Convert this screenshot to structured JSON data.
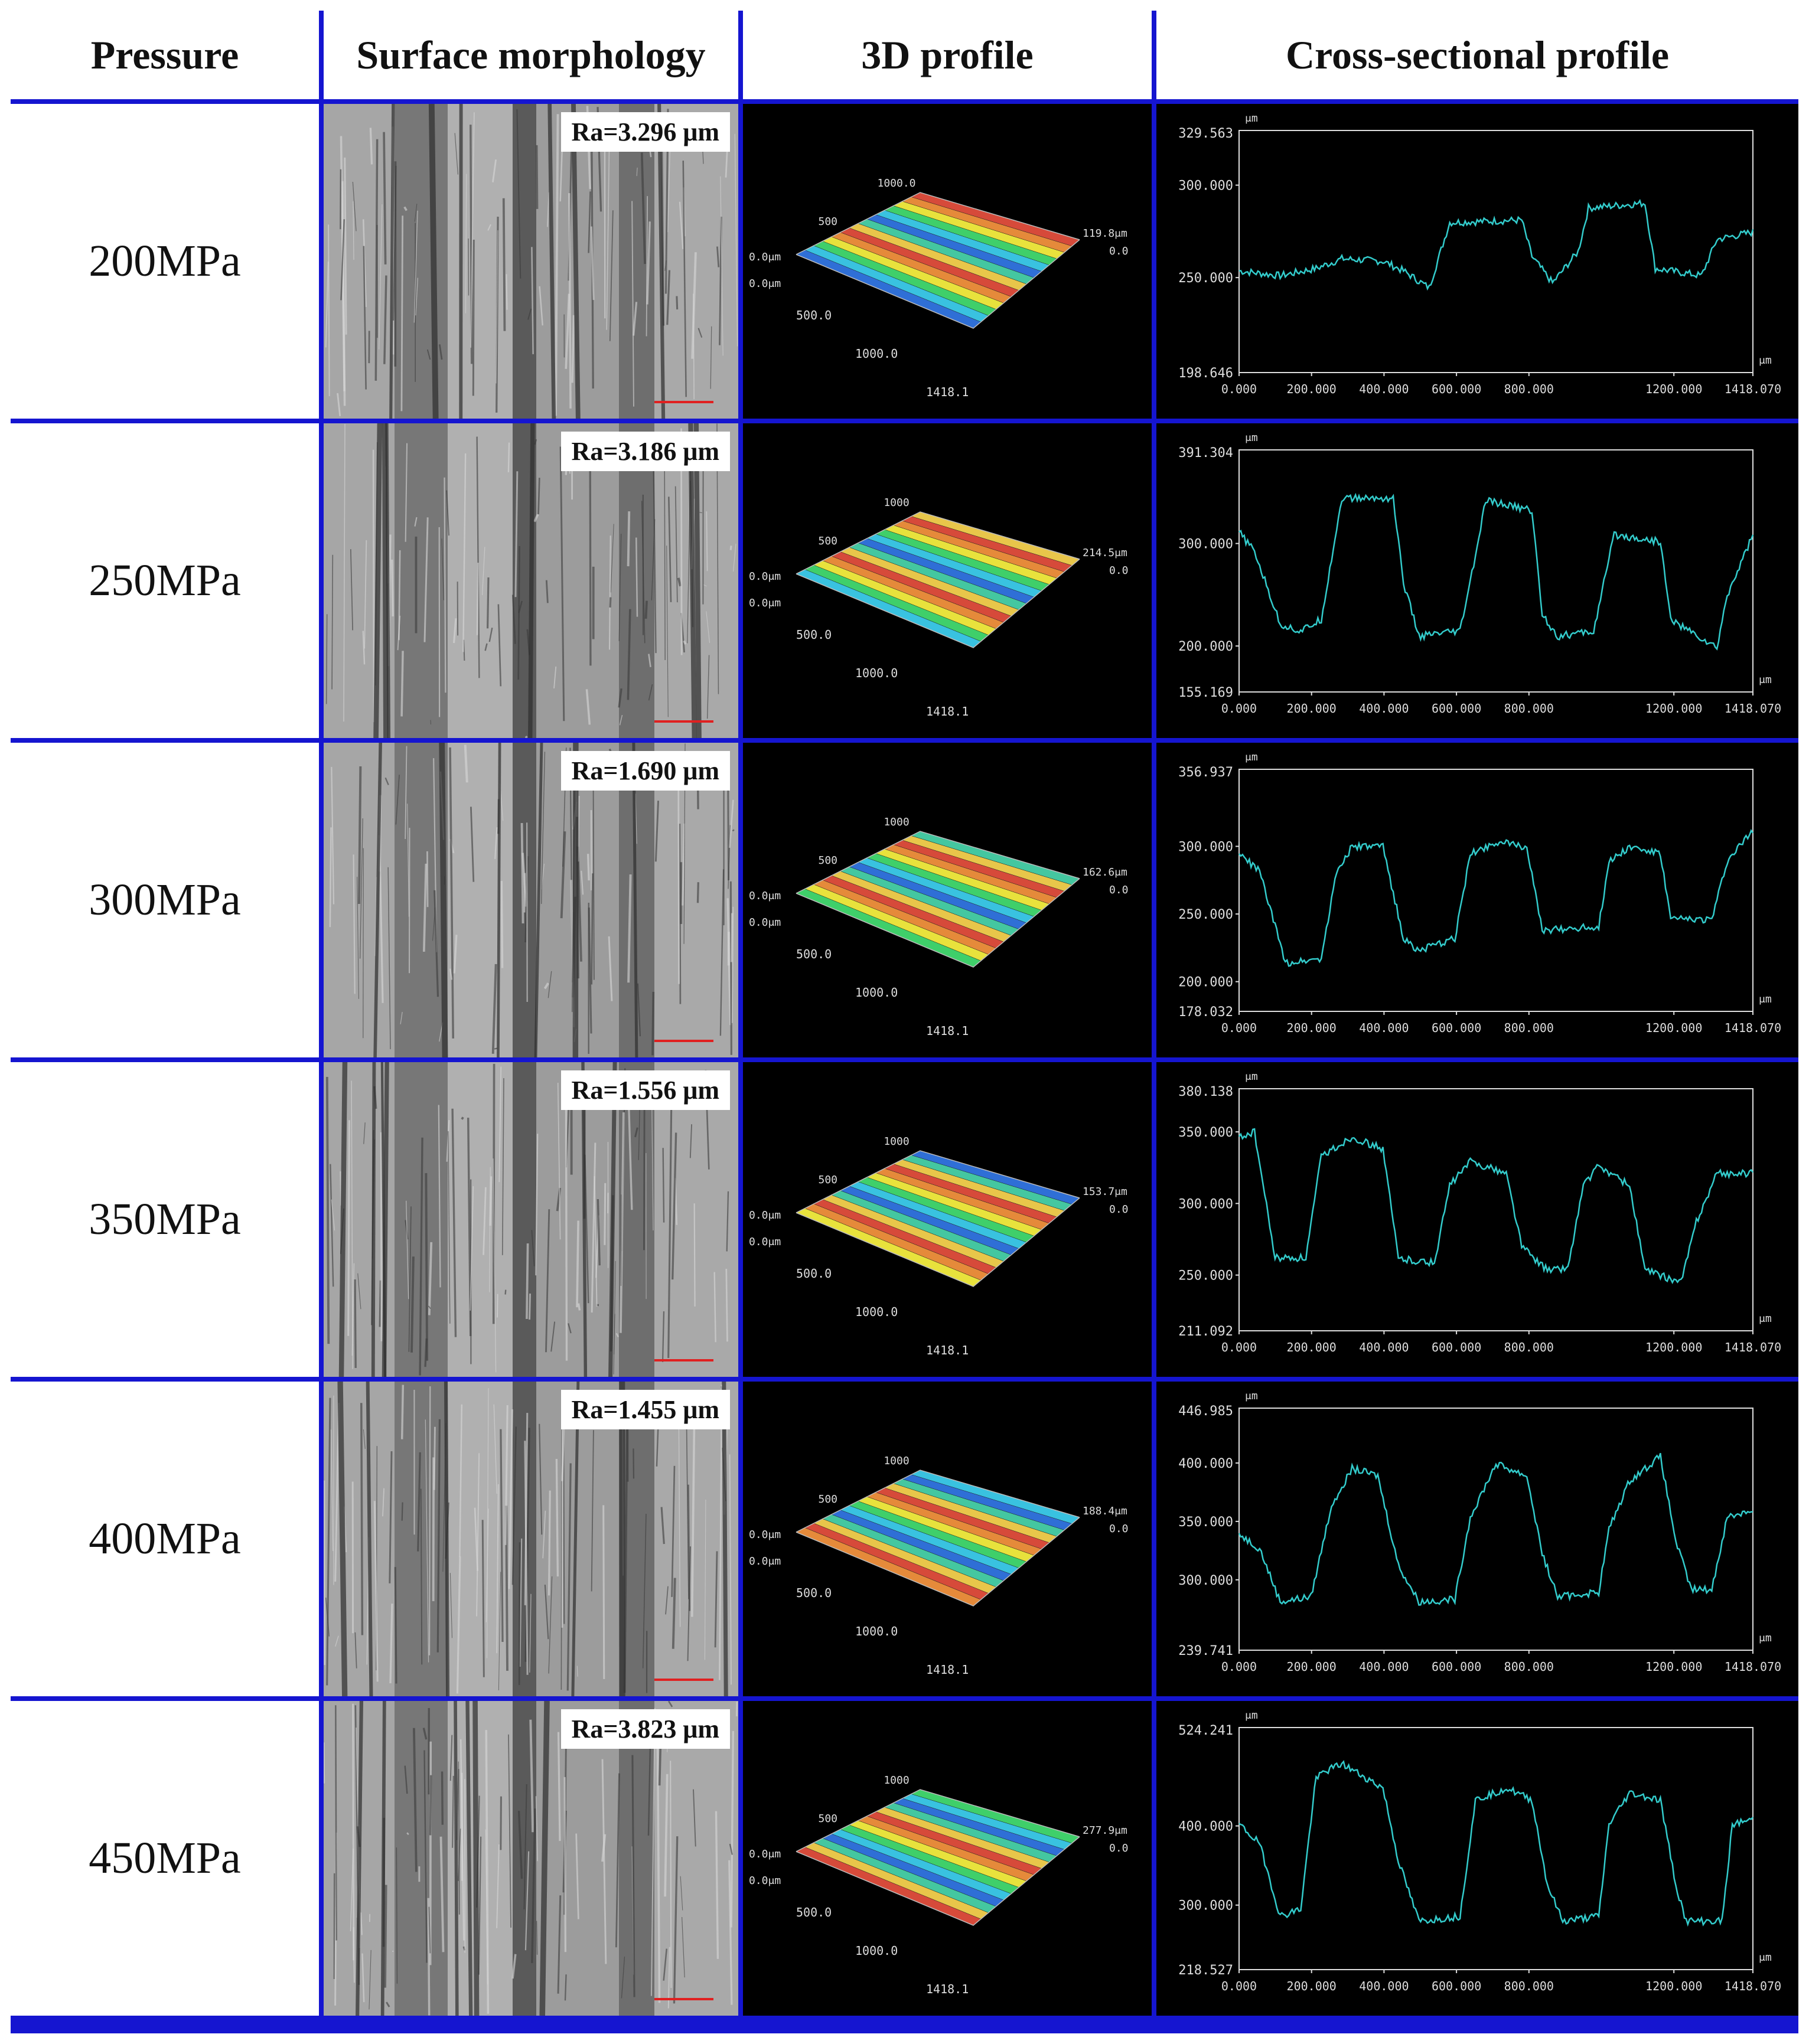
{
  "headers": [
    "Pressure",
    "Surface morphology",
    "3D profile",
    "Cross-sectional profile"
  ],
  "axis_unit": "μm",
  "x_ticks": [
    "0.000",
    "200.000",
    "400.000",
    "600.000",
    "800.000",
    "1200.000",
    "1418.070"
  ],
  "rows": [
    {
      "pressure": "200MPa",
      "ra": "Ra=3.296 μm",
      "p3d": {
        "z_top": "1000.0",
        "z_mid": "500",
        "zero_a": "0.0μm",
        "zero_b": "0.0μm",
        "y_mid": "500.0",
        "y_1000": "1000.0",
        "y_end": "1418.1",
        "height": "119.8μm",
        "height_zero": "0.0"
      },
      "chart": {
        "y_max": "329.563",
        "y_min": "198.646",
        "ticks": [
          "300.000",
          "250.000"
        ]
      }
    },
    {
      "pressure": "250MPa",
      "ra": "Ra=3.186 μm",
      "p3d": {
        "z_top": "1000",
        "z_mid": "500",
        "zero_a": "0.0μm",
        "zero_b": "0.0μm",
        "y_mid": "500.0",
        "y_1000": "1000.0",
        "y_end": "1418.1",
        "height": "214.5μm",
        "height_zero": "0.0"
      },
      "chart": {
        "y_max": "391.304",
        "y_min": "155.169",
        "ticks": [
          "300.000",
          "200.000"
        ]
      }
    },
    {
      "pressure": "300MPa",
      "ra": "Ra=1.690 μm",
      "p3d": {
        "z_top": "1000",
        "z_mid": "500",
        "zero_a": "0.0μm",
        "zero_b": "0.0μm",
        "y_mid": "500.0",
        "y_1000": "1000.0",
        "y_end": "1418.1",
        "height": "162.6μm",
        "height_zero": "0.0"
      },
      "chart": {
        "y_max": "356.937",
        "y_min": "178.032",
        "ticks": [
          "300.000",
          "250.000",
          "200.000"
        ]
      }
    },
    {
      "pressure": "350MPa",
      "ra": "Ra=1.556 μm",
      "p3d": {
        "z_top": "1000",
        "z_mid": "500",
        "zero_a": "0.0μm",
        "zero_b": "0.0μm",
        "y_mid": "500.0",
        "y_1000": "1000.0",
        "y_end": "1418.1",
        "height": "153.7μm",
        "height_zero": "0.0"
      },
      "chart": {
        "y_max": "380.138",
        "y_min": "211.092",
        "ticks": [
          "350.000",
          "300.000",
          "250.000"
        ]
      }
    },
    {
      "pressure": "400MPa",
      "ra": "Ra=1.455 μm",
      "p3d": {
        "z_top": "1000",
        "z_mid": "500",
        "zero_a": "0.0μm",
        "zero_b": "0.0μm",
        "y_mid": "500.0",
        "y_1000": "1000.0",
        "y_end": "1418.1",
        "height": "188.4μm",
        "height_zero": "0.0"
      },
      "chart": {
        "y_max": "446.985",
        "y_min": "239.741",
        "ticks": [
          "400.000",
          "350.000",
          "300.000"
        ]
      }
    },
    {
      "pressure": "450MPa",
      "ra": "Ra=3.823 μm",
      "p3d": {
        "z_top": "1000",
        "z_mid": "500",
        "zero_a": "0.0μm",
        "zero_b": "0.0μm",
        "y_mid": "500.0",
        "y_1000": "1000.0",
        "y_end": "1418.1",
        "height": "277.9μm",
        "height_zero": "0.0"
      },
      "chart": {
        "y_max": "524.241",
        "y_min": "218.527",
        "ticks": [
          "400.000",
          "300.000"
        ]
      }
    }
  ],
  "colors": {
    "border": "#1515d0",
    "trace": "#33cccc",
    "panel": "#000000"
  }
}
